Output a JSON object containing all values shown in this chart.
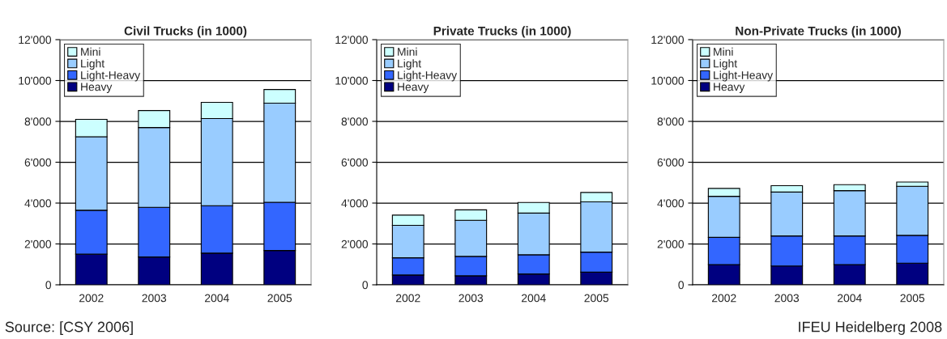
{
  "chart_data": [
    {
      "type": "bar",
      "title": "Civil Trucks (in 1000)",
      "stacked": true,
      "categories": [
        "2002",
        "2003",
        "2004",
        "2005"
      ],
      "series": [
        {
          "name": "Heavy",
          "color": "#000080",
          "values": [
            1500,
            1360,
            1550,
            1680
          ]
        },
        {
          "name": "Light-Heavy",
          "color": "#3366ff",
          "values": [
            2150,
            2430,
            2320,
            2360
          ]
        },
        {
          "name": "Light",
          "color": "#99ccff",
          "values": [
            3600,
            3910,
            4270,
            4850
          ]
        },
        {
          "name": "Mini",
          "color": "#ccffff",
          "values": [
            850,
            830,
            790,
            670
          ]
        }
      ],
      "ylim": [
        0,
        12000
      ],
      "yticks": [
        {
          "value": 0,
          "label": "0"
        },
        {
          "value": 2000,
          "label": "2'000"
        },
        {
          "value": 4000,
          "label": "4'000"
        },
        {
          "value": 6000,
          "label": "6'000"
        },
        {
          "value": 8000,
          "label": "8'000"
        },
        {
          "value": 10000,
          "label": "10'000"
        },
        {
          "value": 12000,
          "label": "12'000"
        }
      ],
      "grid": "y",
      "legend": "top left",
      "annotations": [
        "Source: [CSY 2006]"
      ]
    },
    {
      "type": "bar",
      "title": "Private Trucks (in 1000)",
      "stacked": true,
      "categories": [
        "2002",
        "2003",
        "2004",
        "2005"
      ],
      "series": [
        {
          "name": "Heavy",
          "color": "#000080",
          "values": [
            480,
            440,
            530,
            620
          ]
        },
        {
          "name": "Light-Heavy",
          "color": "#3366ff",
          "values": [
            840,
            950,
            940,
            980
          ]
        },
        {
          "name": "Light",
          "color": "#99ccff",
          "values": [
            1590,
            1770,
            2040,
            2460
          ]
        },
        {
          "name": "Mini",
          "color": "#ccffff",
          "values": [
            500,
            510,
            520,
            460
          ]
        }
      ],
      "ylim": [
        0,
        12000
      ],
      "yticks": [
        {
          "value": 0,
          "label": "0"
        },
        {
          "value": 2000,
          "label": "2'000"
        },
        {
          "value": 4000,
          "label": "4'000"
        },
        {
          "value": 6000,
          "label": "6'000"
        },
        {
          "value": 8000,
          "label": "8'000"
        },
        {
          "value": 10000,
          "label": "10'000"
        },
        {
          "value": 12000,
          "label": "12'000"
        }
      ],
      "grid": "y",
      "legend": "top left"
    },
    {
      "type": "bar",
      "title": "Non-Private Trucks (in 1000)",
      "stacked": true,
      "categories": [
        "2002",
        "2003",
        "2004",
        "2005"
      ],
      "series": [
        {
          "name": "Heavy",
          "color": "#000080",
          "values": [
            990,
            920,
            990,
            1060
          ]
        },
        {
          "name": "Light-Heavy",
          "color": "#3366ff",
          "values": [
            1330,
            1470,
            1400,
            1360
          ]
        },
        {
          "name": "Light",
          "color": "#99ccff",
          "values": [
            2010,
            2150,
            2220,
            2400
          ]
        },
        {
          "name": "Mini",
          "color": "#ccffff",
          "values": [
            390,
            310,
            290,
            210
          ]
        }
      ],
      "ylim": [
        0,
        12000
      ],
      "yticks": [
        {
          "value": 0,
          "label": "0"
        },
        {
          "value": 2000,
          "label": "2'000"
        },
        {
          "value": 4000,
          "label": "4'000"
        },
        {
          "value": 6000,
          "label": "6'000"
        },
        {
          "value": 8000,
          "label": "8'000"
        },
        {
          "value": 10000,
          "label": "10'000"
        },
        {
          "value": 12000,
          "label": "12'000"
        }
      ],
      "grid": "y",
      "legend": "top left",
      "annotations": [
        "IFEU Heidelberg 2008"
      ]
    }
  ]
}
